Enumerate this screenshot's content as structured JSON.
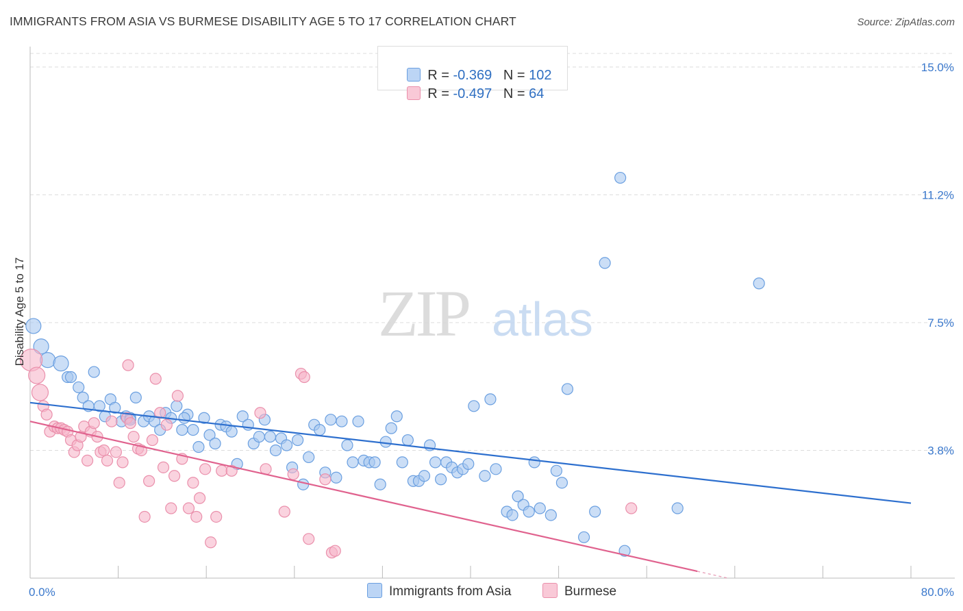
{
  "title": "IMMIGRANTS FROM ASIA VS BURMESE DISABILITY AGE 5 TO 17 CORRELATION CHART",
  "source": "Source: ZipAtlas.com",
  "watermark": {
    "zip": "ZIP",
    "atlas": "atlas"
  },
  "legend_stats": [
    {
      "r_label": "R = ",
      "r_value": "-0.369",
      "n_label": "N = ",
      "n_value": "102"
    },
    {
      "r_label": "R = ",
      "r_value": "-0.497",
      "n_label": "N = ",
      "n_value": "64"
    }
  ],
  "chart_data": {
    "type": "scatter",
    "title": "IMMIGRANTS FROM ASIA VS BURMESE DISABILITY AGE 5 TO 17 CORRELATION CHART",
    "ylabel": "Disability Age 5 to 17",
    "xlabel": "",
    "x_tick_labels": [
      "0.0%",
      "80.0%"
    ],
    "y_tick_labels": [
      "15.0%",
      "11.2%",
      "7.5%",
      "3.8%"
    ],
    "xlim": [
      0,
      80
    ],
    "ylim": [
      0,
      15.4
    ],
    "y_ticks": [
      15.0,
      11.25,
      7.5,
      3.75
    ],
    "grid": true,
    "legend_position": "top-center",
    "colors": {
      "asia_fill": "#a8c8f0",
      "asia_stroke": "#6a9fe0",
      "asia_line": "#2d6fce",
      "burmese_fill": "#f6b6c9",
      "burmese_stroke": "#ea8fab",
      "burmese_line": "#e0628e",
      "tick_label": "#3a78cc"
    },
    "series": [
      {
        "name": "Immigrants from Asia",
        "trend": {
          "x": [
            0,
            80
          ],
          "y": [
            5.15,
            2.2
          ]
        },
        "points": [
          [
            0.3,
            7.4
          ],
          [
            1.0,
            6.8
          ],
          [
            1.6,
            6.4
          ],
          [
            2.8,
            6.3
          ],
          [
            3.4,
            5.9
          ],
          [
            3.7,
            5.9
          ],
          [
            4.4,
            5.6
          ],
          [
            4.8,
            5.3
          ],
          [
            5.3,
            5.05
          ],
          [
            5.8,
            6.05
          ],
          [
            6.3,
            5.05
          ],
          [
            6.8,
            4.75
          ],
          [
            7.3,
            5.25
          ],
          [
            7.7,
            5.0
          ],
          [
            8.3,
            4.6
          ],
          [
            8.7,
            4.75
          ],
          [
            9.1,
            4.7
          ],
          [
            9.6,
            5.3
          ],
          [
            10.3,
            4.6
          ],
          [
            10.8,
            4.75
          ],
          [
            11.3,
            4.6
          ],
          [
            11.8,
            4.35
          ],
          [
            12.3,
            4.85
          ],
          [
            12.8,
            4.7
          ],
          [
            13.3,
            5.05
          ],
          [
            13.8,
            4.35
          ],
          [
            14.3,
            4.8
          ],
          [
            14.8,
            4.35
          ],
          [
            15.3,
            3.85
          ],
          [
            15.8,
            4.7
          ],
          [
            16.3,
            4.2
          ],
          [
            16.8,
            3.95
          ],
          [
            17.3,
            4.5
          ],
          [
            17.8,
            4.45
          ],
          [
            18.3,
            4.3
          ],
          [
            18.8,
            3.35
          ],
          [
            19.3,
            4.75
          ],
          [
            19.8,
            4.5
          ],
          [
            20.3,
            3.95
          ],
          [
            20.8,
            4.15
          ],
          [
            21.3,
            4.65
          ],
          [
            21.8,
            4.15
          ],
          [
            22.3,
            3.75
          ],
          [
            22.8,
            4.1
          ],
          [
            23.3,
            3.9
          ],
          [
            23.8,
            3.25
          ],
          [
            24.3,
            4.05
          ],
          [
            24.8,
            2.75
          ],
          [
            25.3,
            3.55
          ],
          [
            25.8,
            4.5
          ],
          [
            26.3,
            4.35
          ],
          [
            26.8,
            3.1
          ],
          [
            27.3,
            4.65
          ],
          [
            27.8,
            2.95
          ],
          [
            28.3,
            4.6
          ],
          [
            28.8,
            3.9
          ],
          [
            29.3,
            3.4
          ],
          [
            29.8,
            4.6
          ],
          [
            30.3,
            3.45
          ],
          [
            30.8,
            3.4
          ],
          [
            31.3,
            3.4
          ],
          [
            31.8,
            2.75
          ],
          [
            32.3,
            4.0
          ],
          [
            32.8,
            4.4
          ],
          [
            33.3,
            4.75
          ],
          [
            33.8,
            3.4
          ],
          [
            34.3,
            4.05
          ],
          [
            34.8,
            2.85
          ],
          [
            35.3,
            2.85
          ],
          [
            35.8,
            3.0
          ],
          [
            36.3,
            3.9
          ],
          [
            36.8,
            3.4
          ],
          [
            37.3,
            2.9
          ],
          [
            37.8,
            3.4
          ],
          [
            38.3,
            3.25
          ],
          [
            38.8,
            3.1
          ],
          [
            39.3,
            3.2
          ],
          [
            39.8,
            3.35
          ],
          [
            40.3,
            5.05
          ],
          [
            41.3,
            3.0
          ],
          [
            41.8,
            5.25
          ],
          [
            42.3,
            3.2
          ],
          [
            43.3,
            1.95
          ],
          [
            43.8,
            1.85
          ],
          [
            44.3,
            2.4
          ],
          [
            44.8,
            2.15
          ],
          [
            45.3,
            1.95
          ],
          [
            45.8,
            3.4
          ],
          [
            46.3,
            2.05
          ],
          [
            47.3,
            1.85
          ],
          [
            47.8,
            3.15
          ],
          [
            48.3,
            2.8
          ],
          [
            48.8,
            5.55
          ],
          [
            50.3,
            1.2
          ],
          [
            51.3,
            1.95
          ],
          [
            52.2,
            9.25
          ],
          [
            53.6,
            11.75
          ],
          [
            54.0,
            0.8
          ],
          [
            58.8,
            2.05
          ],
          [
            66.2,
            8.65
          ],
          [
            9.1,
            4.65
          ],
          [
            14.0,
            4.7
          ]
        ]
      },
      {
        "name": "Burmese",
        "trend": {
          "x": [
            0,
            60.6
          ],
          "y": [
            4.6,
            0.2
          ]
        },
        "points": [
          [
            0.1,
            6.4
          ],
          [
            0.6,
            5.95
          ],
          [
            0.9,
            5.45
          ],
          [
            1.2,
            5.05
          ],
          [
            1.5,
            4.8
          ],
          [
            1.8,
            4.3
          ],
          [
            2.2,
            4.45
          ],
          [
            2.5,
            4.4
          ],
          [
            2.8,
            4.4
          ],
          [
            3.1,
            4.35
          ],
          [
            3.4,
            4.3
          ],
          [
            3.7,
            4.05
          ],
          [
            4.0,
            3.7
          ],
          [
            4.3,
            3.9
          ],
          [
            4.6,
            4.15
          ],
          [
            4.9,
            4.45
          ],
          [
            5.2,
            3.45
          ],
          [
            5.5,
            4.3
          ],
          [
            5.8,
            4.55
          ],
          [
            6.1,
            4.15
          ],
          [
            6.4,
            3.7
          ],
          [
            6.7,
            3.75
          ],
          [
            7.0,
            3.45
          ],
          [
            7.4,
            4.6
          ],
          [
            7.8,
            3.7
          ],
          [
            8.1,
            2.8
          ],
          [
            8.4,
            3.4
          ],
          [
            8.8,
            4.7
          ],
          [
            9.1,
            4.55
          ],
          [
            9.4,
            4.15
          ],
          [
            9.8,
            3.8
          ],
          [
            10.1,
            3.75
          ],
          [
            10.4,
            1.8
          ],
          [
            10.8,
            2.85
          ],
          [
            11.1,
            4.05
          ],
          [
            11.4,
            5.85
          ],
          [
            11.8,
            4.85
          ],
          [
            12.1,
            3.25
          ],
          [
            12.4,
            4.5
          ],
          [
            12.8,
            2.05
          ],
          [
            13.1,
            3.0
          ],
          [
            13.4,
            5.35
          ],
          [
            13.8,
            3.5
          ],
          [
            14.4,
            2.05
          ],
          [
            14.8,
            2.8
          ],
          [
            15.1,
            1.8
          ],
          [
            15.4,
            2.35
          ],
          [
            15.9,
            3.2
          ],
          [
            16.4,
            1.05
          ],
          [
            16.9,
            1.8
          ],
          [
            17.4,
            3.15
          ],
          [
            18.3,
            3.15
          ],
          [
            20.9,
            4.85
          ],
          [
            23.1,
            1.95
          ],
          [
            23.9,
            3.05
          ],
          [
            24.6,
            6.0
          ],
          [
            24.9,
            5.9
          ],
          [
            25.3,
            1.15
          ],
          [
            26.8,
            2.9
          ],
          [
            27.4,
            0.75
          ],
          [
            27.7,
            0.8
          ],
          [
            8.9,
            6.25
          ],
          [
            54.6,
            2.05
          ],
          [
            21.4,
            3.2
          ]
        ]
      }
    ]
  },
  "bottom_legend": [
    "Immigrants from Asia",
    "Burmese"
  ]
}
